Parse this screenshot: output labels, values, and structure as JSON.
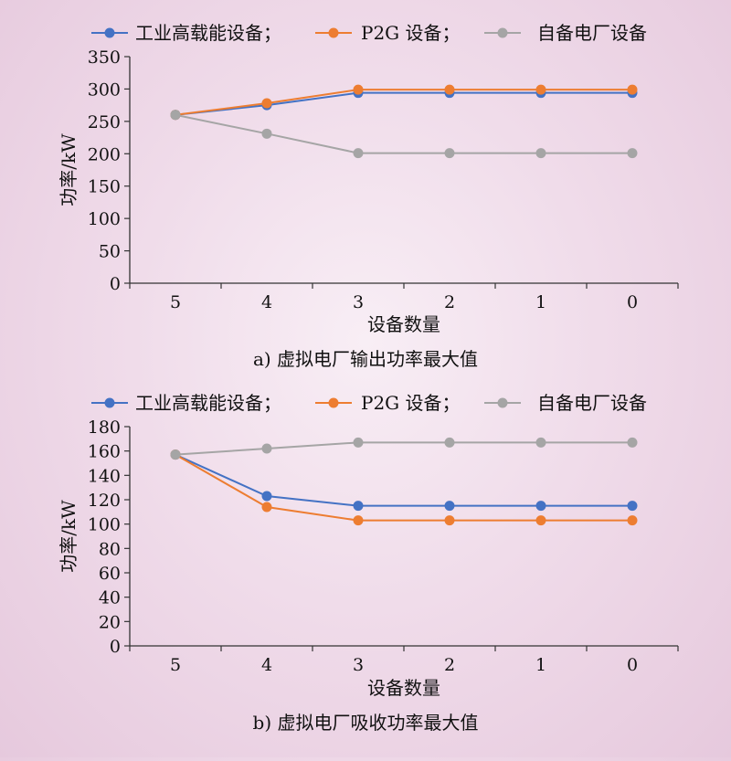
{
  "chart_data": [
    {
      "type": "line",
      "caption": "a) 虚拟电厂输出功率最大值",
      "xlabel": "设备数量",
      "ylabel": "功率/kW",
      "categories": [
        "5",
        "4",
        "3",
        "2",
        "1",
        "0"
      ],
      "yticks": [
        "0",
        "50",
        "100",
        "150",
        "200",
        "250",
        "300",
        "350"
      ],
      "ylim": [
        0,
        350
      ],
      "legend_position": "top",
      "series": [
        {
          "name": "工业高载能设备；",
          "color": "#4472c4",
          "values": [
            260,
            275,
            294,
            294,
            294,
            294
          ]
        },
        {
          "name": "P2G 设备；",
          "color": "#ed7d31",
          "values": [
            260,
            278,
            299,
            299,
            299,
            299
          ]
        },
        {
          "name": "自备电厂设备",
          "color": "#a5a5a5",
          "values": [
            260,
            231,
            201,
            201,
            201,
            201
          ]
        }
      ]
    },
    {
      "type": "line",
      "caption": "b) 虚拟电厂吸收功率最大值",
      "xlabel": "设备数量",
      "ylabel": "功率/kW",
      "categories": [
        "5",
        "4",
        "3",
        "2",
        "1",
        "0"
      ],
      "yticks": [
        "0",
        "20",
        "40",
        "60",
        "80",
        "100",
        "120",
        "140",
        "160",
        "180"
      ],
      "ylim": [
        0,
        180
      ],
      "legend_position": "top",
      "series": [
        {
          "name": "工业高载能设备；",
          "color": "#4472c4",
          "values": [
            157,
            123,
            115,
            115,
            115,
            115
          ]
        },
        {
          "name": "P2G 设备；",
          "color": "#ed7d31",
          "values": [
            157,
            114,
            103,
            103,
            103,
            103
          ]
        },
        {
          "name": "自备电厂设备",
          "color": "#a5a5a5",
          "values": [
            157,
            162,
            167,
            167,
            167,
            167
          ]
        }
      ]
    }
  ]
}
